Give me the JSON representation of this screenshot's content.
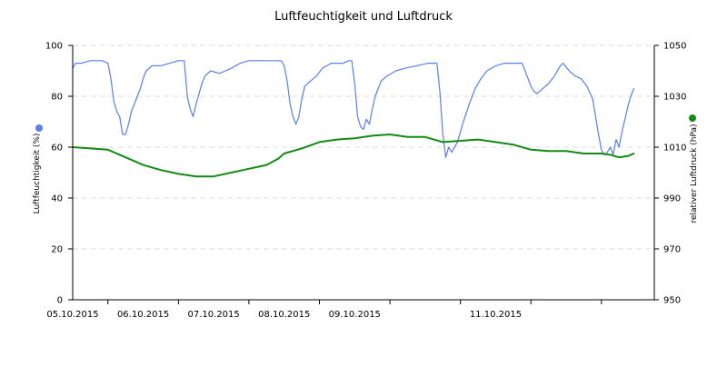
{
  "chart_data": {
    "type": "line",
    "title": "Luftfeuchtigkeit und Luftdruck",
    "x_range": [
      "2015-10-04T12:00",
      "2015-10-12T18:00"
    ],
    "x_ticks": [
      "2015-10-05",
      "2015-10-06",
      "2015-10-07",
      "2015-10-08",
      "2015-10-09",
      "2015-10-10",
      "2015-10-11",
      "2015-10-12"
    ],
    "x_tick_labels": [
      "05.10.2015",
      "06.10.2015",
      "07.10.2015",
      "08.10.2015",
      "09.10.2015",
      "",
      "11.10.2015",
      ""
    ],
    "grid": true,
    "y_left": {
      "label": "Luftfeuchtigkeit (%)",
      "range": [
        0,
        100
      ],
      "ticks": [
        0,
        20,
        40,
        60,
        80,
        100
      ]
    },
    "y_right": {
      "label": "relativer Luftdruck (hPa)",
      "range": [
        950,
        1050
      ],
      "ticks": [
        950,
        970,
        990,
        1010,
        1030,
        1050
      ]
    },
    "series": [
      {
        "axis": "left",
        "color": "#5b7fe8",
        "points": [
          [
            "2015-10-04T12:00",
            91
          ],
          [
            "2015-10-04T13:00",
            93
          ],
          [
            "2015-10-04T15:00",
            93
          ],
          [
            "2015-10-04T18:00",
            94
          ],
          [
            "2015-10-04T22:00",
            94
          ],
          [
            "2015-10-05T00:00",
            93
          ],
          [
            "2015-10-05T01:00",
            87
          ],
          [
            "2015-10-05T02:00",
            78
          ],
          [
            "2015-10-05T03:00",
            74
          ],
          [
            "2015-10-05T04:00",
            72
          ],
          [
            "2015-10-05T05:00",
            65
          ],
          [
            "2015-10-05T06:00",
            65
          ],
          [
            "2015-10-05T07:00",
            69
          ],
          [
            "2015-10-05T08:00",
            74
          ],
          [
            "2015-10-05T09:00",
            77
          ],
          [
            "2015-10-05T10:00",
            80
          ],
          [
            "2015-10-05T11:00",
            83
          ],
          [
            "2015-10-05T12:00",
            87
          ],
          [
            "2015-10-05T13:00",
            90
          ],
          [
            "2015-10-05T15:00",
            92
          ],
          [
            "2015-10-05T18:00",
            92
          ],
          [
            "2015-10-05T21:00",
            93
          ],
          [
            "2015-10-06T00:00",
            94
          ],
          [
            "2015-10-06T02:00",
            94
          ],
          [
            "2015-10-06T03:00",
            80
          ],
          [
            "2015-10-06T04:00",
            75
          ],
          [
            "2015-10-06T05:00",
            72
          ],
          [
            "2015-10-06T06:00",
            77
          ],
          [
            "2015-10-06T07:00",
            81
          ],
          [
            "2015-10-06T08:00",
            85
          ],
          [
            "2015-10-06T09:00",
            88
          ],
          [
            "2015-10-06T11:00",
            90
          ],
          [
            "2015-10-06T14:00",
            89
          ],
          [
            "2015-10-06T16:00",
            90
          ],
          [
            "2015-10-06T18:00",
            91
          ],
          [
            "2015-10-06T21:00",
            93
          ],
          [
            "2015-10-07T00:00",
            94
          ],
          [
            "2015-10-07T06:00",
            94
          ],
          [
            "2015-10-07T11:00",
            94
          ],
          [
            "2015-10-07T12:00",
            92
          ],
          [
            "2015-10-07T13:00",
            86
          ],
          [
            "2015-10-07T14:00",
            77
          ],
          [
            "2015-10-07T15:00",
            72
          ],
          [
            "2015-10-07T16:00",
            69
          ],
          [
            "2015-10-07T17:00",
            72
          ],
          [
            "2015-10-07T18:00",
            79
          ],
          [
            "2015-10-07T19:00",
            84
          ],
          [
            "2015-10-07T21:00",
            86
          ],
          [
            "2015-10-07T23:00",
            88
          ],
          [
            "2015-10-08T01:00",
            91
          ],
          [
            "2015-10-08T04:00",
            93
          ],
          [
            "2015-10-08T08:00",
            93
          ],
          [
            "2015-10-08T10:00",
            94
          ],
          [
            "2015-10-08T11:00",
            94
          ],
          [
            "2015-10-08T12:00",
            85
          ],
          [
            "2015-10-08T13:00",
            72
          ],
          [
            "2015-10-08T14:00",
            68
          ],
          [
            "2015-10-08T15:00",
            67
          ],
          [
            "2015-10-08T16:00",
            71
          ],
          [
            "2015-10-08T17:00",
            69
          ],
          [
            "2015-10-08T18:00",
            75
          ],
          [
            "2015-10-08T19:00",
            80
          ],
          [
            "2015-10-08T21:00",
            86
          ],
          [
            "2015-10-08T23:00",
            88
          ],
          [
            "2015-10-09T02:00",
            90
          ],
          [
            "2015-10-09T05:00",
            91
          ],
          [
            "2015-10-09T09:00",
            92
          ],
          [
            "2015-10-09T13:00",
            93
          ],
          [
            "2015-10-09T16:00",
            93
          ],
          [
            "2015-10-09T17:00",
            82
          ],
          [
            "2015-10-09T18:00",
            65
          ],
          [
            "2015-10-09T19:00",
            56
          ],
          [
            "2015-10-09T20:00",
            60
          ],
          [
            "2015-10-09T21:00",
            58
          ],
          [
            "2015-10-09T23:00",
            62
          ],
          [
            "2015-10-10T01:00",
            70
          ],
          [
            "2015-10-10T03:00",
            77
          ],
          [
            "2015-10-10T05:00",
            83
          ],
          [
            "2015-10-10T07:00",
            87
          ],
          [
            "2015-10-10T09:00",
            90
          ],
          [
            "2015-10-10T12:00",
            92
          ],
          [
            "2015-10-10T15:00",
            93
          ],
          [
            "2015-10-10T19:00",
            93
          ],
          [
            "2015-10-10T21:00",
            93
          ],
          [
            "2015-10-10T22:00",
            90
          ],
          [
            "2015-10-11T00:00",
            84
          ],
          [
            "2015-10-11T01:00",
            82
          ],
          [
            "2015-10-11T02:00",
            81
          ],
          [
            "2015-10-11T04:00",
            83
          ],
          [
            "2015-10-11T06:00",
            85
          ],
          [
            "2015-10-11T08:00",
            88
          ],
          [
            "2015-10-11T10:00",
            92
          ],
          [
            "2015-10-11T11:00",
            93
          ],
          [
            "2015-10-11T13:00",
            90
          ],
          [
            "2015-10-11T15:00",
            88
          ],
          [
            "2015-10-11T17:00",
            87
          ],
          [
            "2015-10-11T19:00",
            84
          ],
          [
            "2015-10-11T21:00",
            79
          ],
          [
            "2015-10-11T22:00",
            72
          ],
          [
            "2015-10-11T23:00",
            65
          ],
          [
            "2015-10-12T00:00",
            59
          ],
          [
            "2015-10-12T01:00",
            57
          ],
          [
            "2015-10-12T02:00",
            58
          ],
          [
            "2015-10-12T03:00",
            60
          ],
          [
            "2015-10-12T04:00",
            57
          ],
          [
            "2015-10-12T05:00",
            63
          ],
          [
            "2015-10-12T06:00",
            60
          ],
          [
            "2015-10-12T07:00",
            66
          ],
          [
            "2015-10-12T08:00",
            71
          ],
          [
            "2015-10-12T09:00",
            76
          ],
          [
            "2015-10-12T10:00",
            80
          ],
          [
            "2015-10-12T11:00",
            83
          ]
        ]
      },
      {
        "axis": "right",
        "color": "#138a13",
        "points": [
          [
            "2015-10-04T12:00",
            1010
          ],
          [
            "2015-10-04T18:00",
            1009.5
          ],
          [
            "2015-10-05T00:00",
            1009
          ],
          [
            "2015-10-05T06:00",
            1006
          ],
          [
            "2015-10-05T12:00",
            1003
          ],
          [
            "2015-10-05T18:00",
            1001
          ],
          [
            "2015-10-06T00:00",
            999.5
          ],
          [
            "2015-10-06T06:00",
            998.5
          ],
          [
            "2015-10-06T12:00",
            998.5
          ],
          [
            "2015-10-06T18:00",
            1000
          ],
          [
            "2015-10-07T00:00",
            1001.5
          ],
          [
            "2015-10-07T06:00",
            1003
          ],
          [
            "2015-10-07T10:00",
            1005.5
          ],
          [
            "2015-10-07T12:00",
            1007.5
          ],
          [
            "2015-10-07T18:00",
            1009.5
          ],
          [
            "2015-10-08T00:00",
            1012
          ],
          [
            "2015-10-08T06:00",
            1013
          ],
          [
            "2015-10-08T12:00",
            1013.5
          ],
          [
            "2015-10-08T18:00",
            1014.5
          ],
          [
            "2015-10-09T00:00",
            1015
          ],
          [
            "2015-10-09T06:00",
            1014
          ],
          [
            "2015-10-09T12:00",
            1014
          ],
          [
            "2015-10-09T18:00",
            1012
          ],
          [
            "2015-10-10T00:00",
            1012.5
          ],
          [
            "2015-10-10T06:00",
            1013
          ],
          [
            "2015-10-10T12:00",
            1012
          ],
          [
            "2015-10-10T18:00",
            1011
          ],
          [
            "2015-10-11T00:00",
            1009
          ],
          [
            "2015-10-11T06:00",
            1008.5
          ],
          [
            "2015-10-11T12:00",
            1008.5
          ],
          [
            "2015-10-11T18:00",
            1007.5
          ],
          [
            "2015-10-12T00:00",
            1007.5
          ],
          [
            "2015-10-12T03:00",
            1007
          ],
          [
            "2015-10-12T06:00",
            1006
          ],
          [
            "2015-10-12T09:00",
            1006.5
          ],
          [
            "2015-10-12T11:00",
            1007.5
          ]
        ]
      }
    ]
  }
}
